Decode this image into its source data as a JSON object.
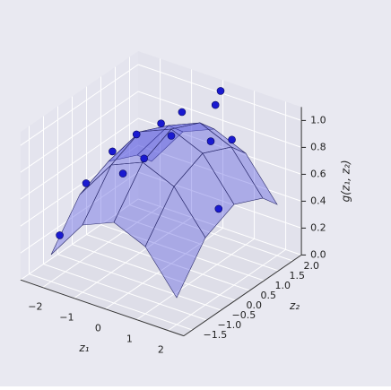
{
  "chart_data": {
    "type": "surface3d",
    "xlabel": "z₁",
    "ylabel": "z₂",
    "zlabel": "g(z₁, z₂)",
    "xlim": [
      -2.7,
      2.5
    ],
    "ylim": [
      -1.8,
      2.3
    ],
    "zlim": [
      0,
      1.1
    ],
    "xticks": [
      {
        "value": -2,
        "label": "−2"
      },
      {
        "value": -1,
        "label": "−1"
      },
      0,
      1,
      2
    ],
    "yticks": [
      {
        "value": -1.5,
        "label": "−1.5"
      },
      {
        "value": -1,
        "label": "−1.0"
      },
      {
        "value": -0.5,
        "label": "−0.5"
      },
      {
        "value": 0,
        "label": "0.0"
      },
      0.5,
      {
        "value": 1,
        "label": "1.0"
      },
      1.5,
      {
        "value": 2,
        "label": "2.0"
      }
    ],
    "zticks": [
      {
        "value": 0,
        "label": "0.0"
      },
      0.2,
      0.4,
      0.6,
      0.8,
      {
        "value": 1,
        "label": "1.0"
      }
    ],
    "grid": true,
    "surface": {
      "color": "#5a5ae0",
      "x": [
        -2,
        -1,
        0,
        1,
        2
      ],
      "y": [
        -1.5,
        -0.5,
        0.5,
        1.5,
        2
      ],
      "z": [
        [
          0.2,
          0.5,
          0.6,
          0.5,
          0.38
        ],
        [
          0.5,
          0.8,
          0.9,
          0.8,
          0.68
        ],
        [
          0.6,
          0.9,
          1.0,
          0.9,
          0.78
        ],
        [
          0.5,
          0.8,
          0.9,
          0.8,
          0.68
        ],
        [
          0.2,
          0.5,
          0.6,
          0.5,
          0.38
        ]
      ]
    },
    "scatter": {
      "color": "#1a1ad0",
      "x": [
        -1.8,
        -1.6,
        -1.2,
        -0.9,
        -0.6,
        -0.5,
        -0.3,
        0.0,
        0.4,
        0.8,
        1.2,
        1.6,
        0.2,
        -2.0
      ],
      "y": [
        -0.5,
        0.2,
        0.6,
        -0.2,
        0.8,
        0.1,
        1.2,
        0.5,
        1.6,
        1.0,
        1.3,
        0.4,
        2.0,
        -1.2
      ],
      "z": [
        0.6,
        0.75,
        0.85,
        0.7,
        0.95,
        0.8,
        1.0,
        0.95,
        1.05,
        0.9,
        0.9,
        0.55,
        1.08,
        0.3
      ]
    }
  }
}
